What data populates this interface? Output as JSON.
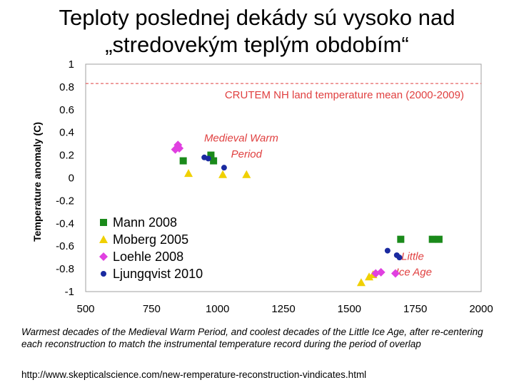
{
  "slide": {
    "title_line1": "Teploty poslednej dekády sú vysoko nad",
    "title_line2": "„stredovekým teplým obdobím“",
    "caption": "Warmest decades of the Medieval Warm Period, and coolest decades of the Little Ice Age, after re-centering each reconstruction to match the instrumental temperature record during the period of overlap",
    "source": "http://www.skepticalscience.com/new-remperature-reconstruction-vindicates.html"
  },
  "chart_data": {
    "type": "scatter",
    "title": "",
    "xlabel": "",
    "ylabel": "Temperature anomaly (C)",
    "xlim": [
      500,
      2000
    ],
    "ylim": [
      -1,
      1
    ],
    "x_ticks": [
      500,
      750,
      1000,
      1250,
      1500,
      1750,
      2000
    ],
    "y_ticks": [
      1,
      0.8,
      0.6,
      0.4,
      0.2,
      0,
      -0.2,
      -0.4,
      -0.6,
      -0.8,
      -1
    ],
    "y_tick_labels": [
      "1",
      "0.8",
      "0.6",
      "0.4",
      "0.2",
      "0",
      "-0.2",
      "-0.4",
      "-0.6",
      "-0.8",
      "-1"
    ],
    "grid": false,
    "legend_position": "bottom-left",
    "reference_line": {
      "y": 0.83,
      "label": "CRUTEM NH land temperature mean (2000-2009)",
      "color": "#e04040"
    },
    "annotations": [
      {
        "text": "Medieval Warm",
        "x": 1090,
        "y": 0.32,
        "color": "#e04040"
      },
      {
        "text": "Period",
        "x": 1110,
        "y": 0.18,
        "color": "#e04040"
      },
      {
        "text": "Little",
        "x": 1740,
        "y": -0.72,
        "color": "#e04040"
      },
      {
        "text": "Ice Age",
        "x": 1745,
        "y": -0.86,
        "color": "#e04040"
      }
    ],
    "series": [
      {
        "name": "Mann 2008",
        "marker": "square",
        "color": "#1a8a1a",
        "points": [
          [
            870,
            0.15
          ],
          [
            975,
            0.2
          ],
          [
            985,
            0.15
          ],
          [
            1695,
            -0.54
          ],
          [
            1815,
            -0.54
          ],
          [
            1840,
            -0.54
          ]
        ]
      },
      {
        "name": "Moberg 2005",
        "marker": "triangle",
        "color": "#f0d000",
        "points": [
          [
            890,
            0.04
          ],
          [
            1020,
            0.03
          ],
          [
            1110,
            0.03
          ],
          [
            1545,
            -0.92
          ],
          [
            1575,
            -0.87
          ],
          [
            1590,
            -0.85
          ]
        ]
      },
      {
        "name": "Loehle 2008",
        "marker": "diamond",
        "color": "#e040e0",
        "points": [
          [
            840,
            0.25
          ],
          [
            850,
            0.29
          ],
          [
            855,
            0.26
          ],
          [
            1600,
            -0.84
          ],
          [
            1620,
            -0.83
          ],
          [
            1675,
            -0.84
          ]
        ]
      },
      {
        "name": "Ljungqvist 2010",
        "marker": "circle",
        "color": "#1a2aa0",
        "points": [
          [
            950,
            0.18
          ],
          [
            965,
            0.17
          ],
          [
            1025,
            0.09
          ],
          [
            1645,
            -0.64
          ],
          [
            1680,
            -0.68
          ],
          [
            1690,
            -0.7
          ]
        ]
      }
    ]
  }
}
